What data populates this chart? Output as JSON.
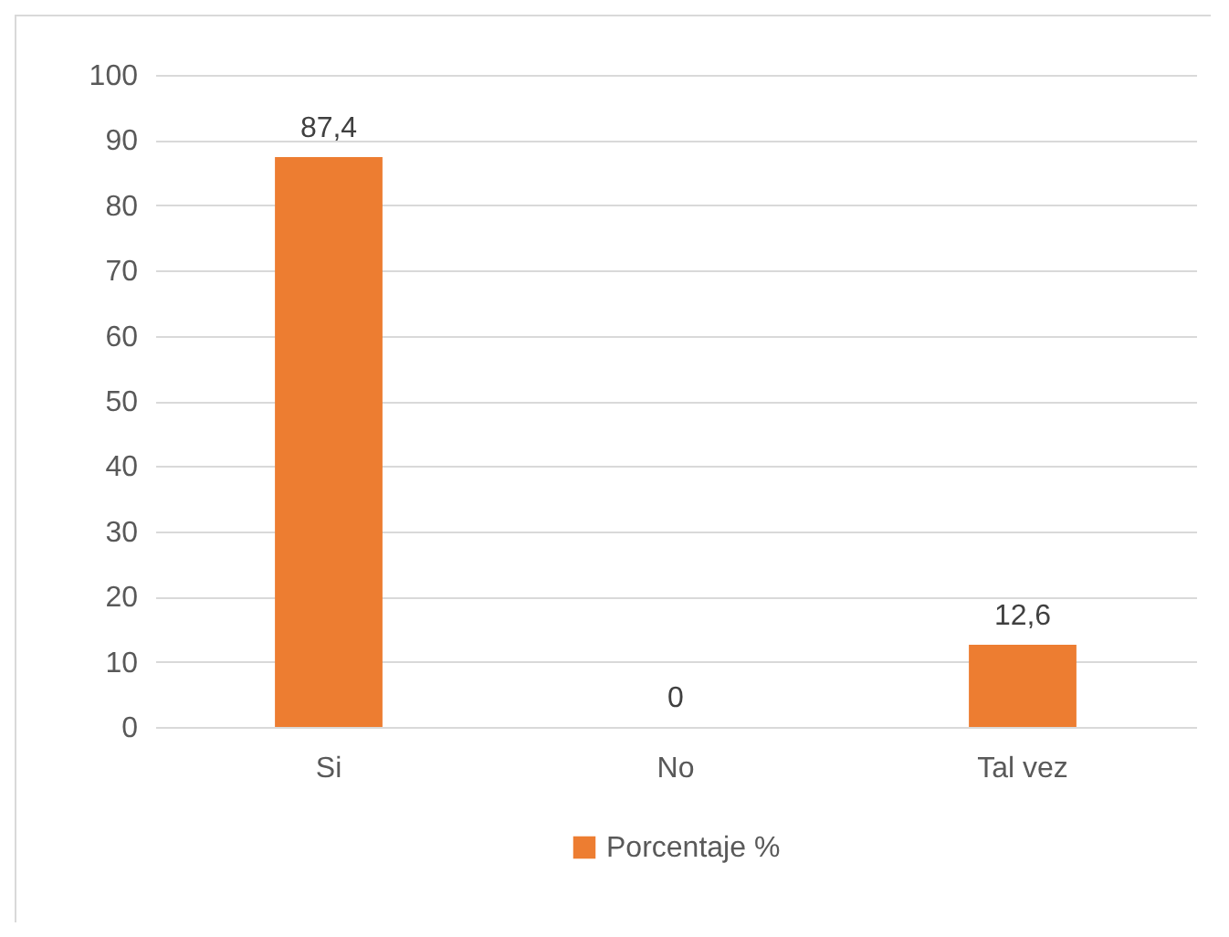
{
  "chart_data": {
    "type": "bar",
    "categories": [
      "Si",
      "No",
      "Tal vez"
    ],
    "series": [
      {
        "name": "Porcentaje %",
        "color": "#ed7d31",
        "values": [
          87.4,
          0,
          12.6
        ]
      }
    ],
    "value_labels": [
      "87,4",
      "0",
      "12,6"
    ],
    "ylim": [
      0,
      100
    ],
    "yticks": [
      0,
      10,
      20,
      30,
      40,
      50,
      60,
      70,
      80,
      90,
      100
    ],
    "grid": "y",
    "legend": "bottom"
  }
}
